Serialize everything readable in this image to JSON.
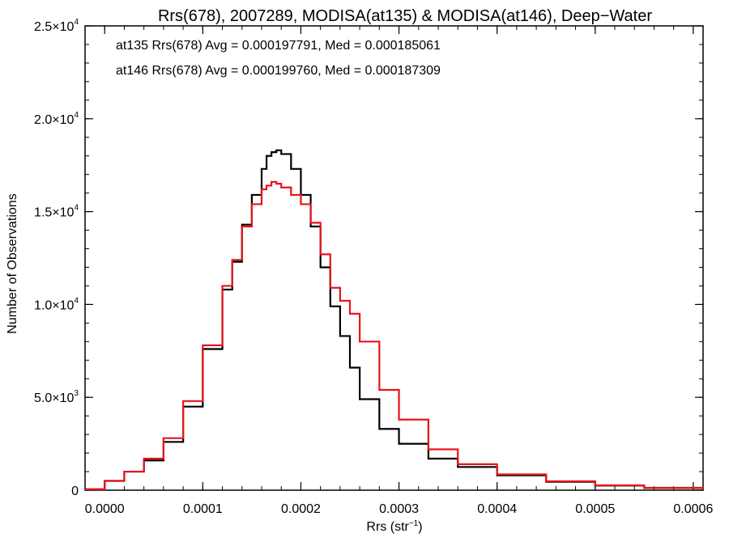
{
  "chart_data": {
    "type": "line",
    "title": "Rrs(678), 2007289, MODISA(at135) & MODISA(at146), Deep−Water",
    "xlabel_main": "Rrs (str",
    "xlabel_sup": "−1",
    "xlabel_close": ")",
    "ylabel": "Number of Observations",
    "xlim": [
      -2e-05,
      0.00061
    ],
    "ylim": [
      0,
      25000
    ],
    "x_ticks": [
      {
        "value": 0.0,
        "label": "0.0000"
      },
      {
        "value": 0.0001,
        "label": "0.0001"
      },
      {
        "value": 0.0002,
        "label": "0.0002"
      },
      {
        "value": 0.0003,
        "label": "0.0003"
      },
      {
        "value": 0.0004,
        "label": "0.0004"
      },
      {
        "value": 0.0005,
        "label": "0.0005"
      },
      {
        "value": 0.0006,
        "label": "0.0006"
      }
    ],
    "y_ticks": [
      {
        "value": 0,
        "label": "0",
        "exp": ""
      },
      {
        "value": 5000,
        "label": "5.0×10",
        "exp": "3"
      },
      {
        "value": 10000,
        "label": "1.0×10",
        "exp": "4"
      },
      {
        "value": 15000,
        "label": "1.5×10",
        "exp": "4"
      },
      {
        "value": 20000,
        "label": "2.0×10",
        "exp": "4"
      },
      {
        "value": 25000,
        "label": "2.5×10",
        "exp": "4"
      }
    ],
    "annotations": [
      {
        "text": "at135 Rrs(678) Avg = 0.000197791, Med = 0.000185061",
        "color": "#000000"
      },
      {
        "text": "at146 Rrs(678) Avg = 0.000199760, Med = 0.000187309",
        "color": "#e8141b"
      }
    ],
    "series": [
      {
        "color": "#000000",
        "x": [
          -2e-05,
          0.0,
          2e-05,
          4e-05,
          6e-05,
          8e-05,
          0.0001,
          0.00012,
          0.00013,
          0.00014,
          0.00015,
          0.00016,
          0.000165,
          0.00017,
          0.000175,
          0.00018,
          0.00019,
          0.0002,
          0.00021,
          0.00022,
          0.00023,
          0.00024,
          0.00025,
          0.00026,
          0.00028,
          0.0003,
          0.00033,
          0.00036,
          0.0004,
          0.00045,
          0.0005,
          0.00055,
          0.00061
        ],
        "y": [
          50,
          500,
          1000,
          1600,
          2600,
          4500,
          7600,
          10800,
          12300,
          14300,
          15900,
          17300,
          18000,
          18200,
          18300,
          18100,
          17300,
          15900,
          14200,
          12000,
          9900,
          8300,
          6600,
          4900,
          3300,
          2500,
          1700,
          1250,
          800,
          450,
          250,
          120,
          50
        ]
      },
      {
        "color": "#e8141b",
        "x": [
          -2e-05,
          0.0,
          2e-05,
          4e-05,
          6e-05,
          8e-05,
          0.0001,
          0.00012,
          0.00013,
          0.00014,
          0.00015,
          0.00016,
          0.000165,
          0.00017,
          0.000175,
          0.00018,
          0.00019,
          0.0002,
          0.00021,
          0.00022,
          0.00023,
          0.00024,
          0.00025,
          0.00026,
          0.00028,
          0.0003,
          0.00033,
          0.00036,
          0.0004,
          0.00045,
          0.0005,
          0.00055,
          0.00061
        ],
        "y": [
          50,
          500,
          1000,
          1700,
          2800,
          4800,
          7800,
          11000,
          12400,
          14200,
          15400,
          16200,
          16400,
          16600,
          16500,
          16300,
          15900,
          15400,
          14400,
          12700,
          10900,
          10200,
          9500,
          8000,
          5400,
          3800,
          2200,
          1400,
          850,
          480,
          260,
          130,
          50
        ]
      }
    ]
  }
}
